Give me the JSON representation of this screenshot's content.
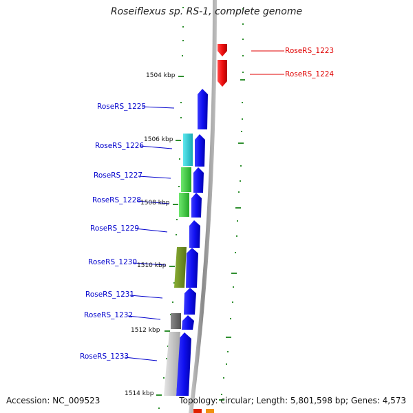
{
  "title": "Roseiflexus sp. RS-1, complete genome",
  "accession": "Accession: NC_009523",
  "topology": "Topology: circular; Length: 5,801,598 bp; Genes: 4,573",
  "kbp_labels": [
    "1504 kbp",
    "1506 kbp",
    "1508 kbp",
    "1510 kbp",
    "1512 kbp",
    "1514 kbp"
  ],
  "genes_left": [
    {
      "label": "RoseRS_1225",
      "color": "#0000cc"
    },
    {
      "label": "RoseRS_1226",
      "color": "#0000cc"
    },
    {
      "label": "RoseRS_1227",
      "color": "#0000cc"
    },
    {
      "label": "RoseRS_1228",
      "color": "#0000cc"
    },
    {
      "label": "RoseRS_1229",
      "color": "#0000cc"
    },
    {
      "label": "RoseRS_1230",
      "color": "#0000cc"
    },
    {
      "label": "RoseRS_1231",
      "color": "#0000cc"
    },
    {
      "label": "RoseRS_1232",
      "color": "#0000cc"
    },
    {
      "label": "RoseRS_1233",
      "color": "#0000cc"
    }
  ],
  "genes_right": [
    {
      "label": "RoseRS_1223",
      "color": "#e00000"
    },
    {
      "label": "RoseRS_1224",
      "color": "#e00000"
    }
  ],
  "colors": {
    "forward_strand": "#0000e0",
    "reverse_strand": "#e00000",
    "backbone": "#9a9a9a",
    "tick": "#2f8f2f",
    "cyan": "#22c8d0",
    "green": "#36c83a",
    "olive": "#6f8f1f",
    "gray_dark": "#6e6e6e",
    "gray_light": "#c8c8c8"
  }
}
